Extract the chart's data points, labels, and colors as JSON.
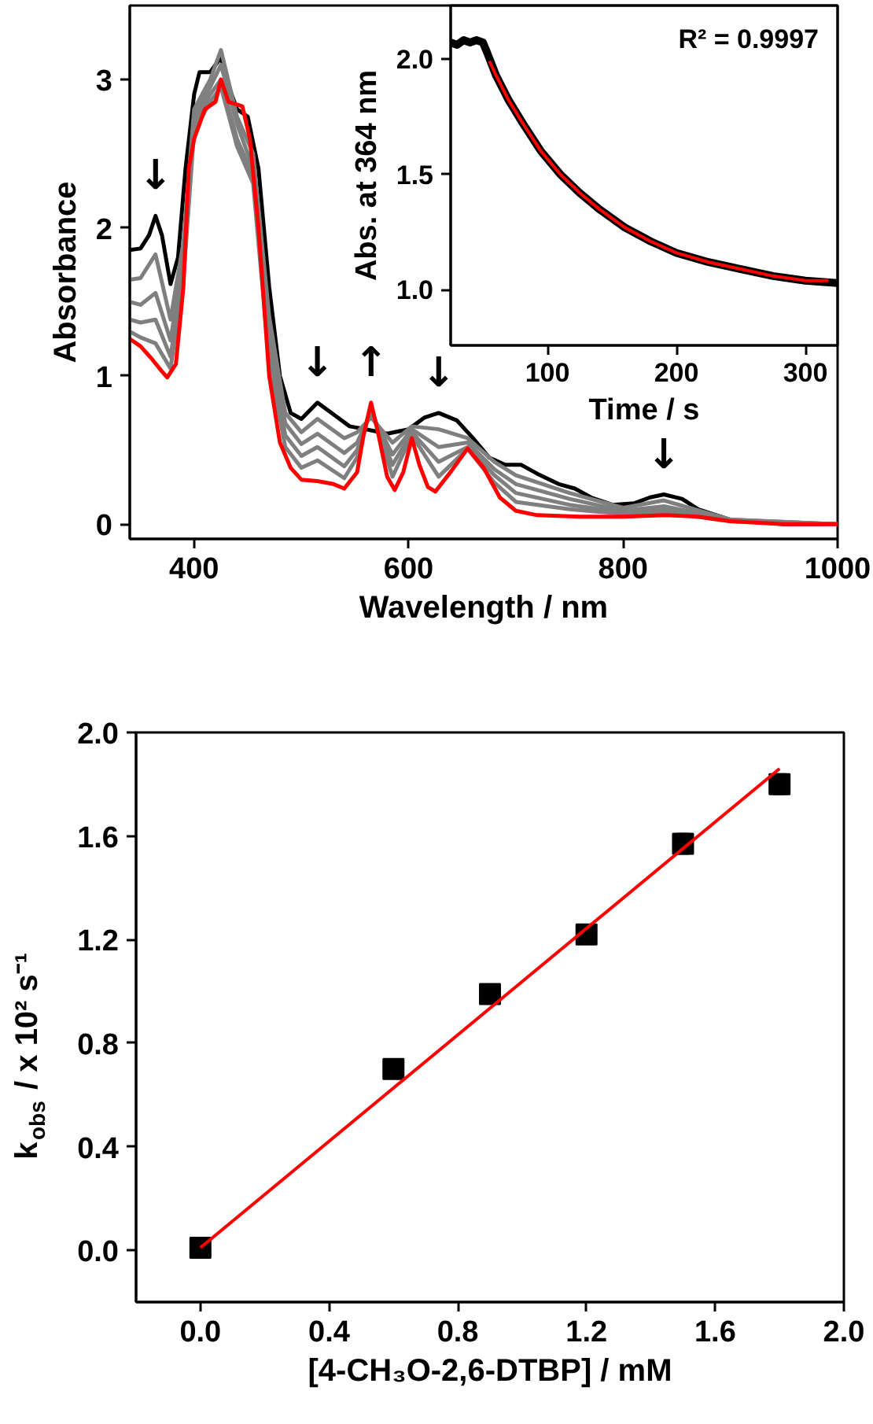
{
  "chart_data": [
    {
      "type": "line",
      "xlabel": "Wavelength / nm",
      "ylabel": "Absorbance",
      "xlim": [
        340,
        1000
      ],
      "ylim": [
        -0.1,
        3.5
      ],
      "xticks": [
        400,
        600,
        800,
        1000
      ],
      "yticks": [
        0,
        1,
        2,
        3
      ],
      "series": [
        {
          "color": "#000000",
          "x": [
            340,
            350,
            358,
            364,
            370,
            378,
            385,
            392,
            400,
            405,
            415,
            425,
            430,
            440,
            450,
            460,
            470,
            480,
            490,
            500,
            515,
            530,
            545,
            560,
            580,
            600,
            615,
            628,
            645,
            660,
            675,
            690,
            705,
            720,
            740,
            755,
            770,
            790,
            810,
            825,
            838,
            855,
            870,
            900,
            950,
            1000
          ],
          "values": [
            1.85,
            1.86,
            1.95,
            2.08,
            1.95,
            1.62,
            1.8,
            2.4,
            2.9,
            3.05,
            3.05,
            3.15,
            3.0,
            2.8,
            2.75,
            2.4,
            1.6,
            1.0,
            0.75,
            0.71,
            0.82,
            0.74,
            0.66,
            0.64,
            0.61,
            0.64,
            0.72,
            0.75,
            0.7,
            0.58,
            0.45,
            0.4,
            0.4,
            0.34,
            0.27,
            0.24,
            0.18,
            0.13,
            0.14,
            0.18,
            0.2,
            0.17,
            0.1,
            0.03,
            0.0,
            0.0
          ]
        },
        {
          "color": "#7f7f7f",
          "x": [
            340,
            350,
            364,
            378,
            390,
            400,
            415,
            425,
            440,
            455,
            470,
            485,
            500,
            515,
            540,
            552,
            565,
            585,
            603,
            628,
            655,
            680,
            700,
            750,
            800,
            838,
            900,
            1000
          ],
          "values": [
            1.65,
            1.66,
            1.82,
            1.38,
            1.9,
            2.8,
            3.0,
            3.2,
            2.75,
            2.5,
            1.4,
            0.75,
            0.62,
            0.71,
            0.58,
            0.62,
            0.72,
            0.55,
            0.66,
            0.64,
            0.58,
            0.42,
            0.33,
            0.21,
            0.11,
            0.16,
            0.03,
            0.0
          ]
        },
        {
          "color": "#7f7f7f",
          "x": [
            340,
            350,
            364,
            378,
            390,
            400,
            415,
            425,
            440,
            455,
            470,
            485,
            500,
            515,
            540,
            552,
            565,
            585,
            603,
            628,
            655,
            680,
            700,
            750,
            800,
            838,
            900,
            1000
          ],
          "values": [
            1.5,
            1.48,
            1.56,
            1.24,
            1.8,
            2.75,
            2.95,
            3.1,
            2.7,
            2.4,
            1.3,
            0.68,
            0.54,
            0.61,
            0.48,
            0.55,
            0.75,
            0.47,
            0.64,
            0.52,
            0.55,
            0.37,
            0.27,
            0.17,
            0.09,
            0.12,
            0.03,
            0.0
          ]
        },
        {
          "color": "#7f7f7f",
          "x": [
            340,
            350,
            364,
            378,
            390,
            400,
            415,
            425,
            440,
            455,
            470,
            485,
            500,
            515,
            540,
            552,
            565,
            585,
            603,
            628,
            655,
            680,
            700,
            750,
            800,
            838,
            900,
            1000
          ],
          "values": [
            1.38,
            1.36,
            1.38,
            1.13,
            1.7,
            2.7,
            2.9,
            3.0,
            2.6,
            2.35,
            1.2,
            0.6,
            0.46,
            0.52,
            0.39,
            0.5,
            0.77,
            0.4,
            0.62,
            0.42,
            0.52,
            0.33,
            0.21,
            0.13,
            0.08,
            0.1,
            0.02,
            0.0
          ]
        },
        {
          "color": "#7f7f7f",
          "x": [
            340,
            350,
            364,
            378,
            390,
            400,
            415,
            425,
            440,
            455,
            470,
            485,
            500,
            515,
            540,
            552,
            565,
            585,
            603,
            628,
            655,
            680,
            700,
            750,
            800,
            838,
            900,
            1000
          ],
          "values": [
            1.3,
            1.26,
            1.22,
            1.05,
            1.65,
            2.65,
            2.85,
            2.95,
            2.55,
            2.3,
            1.1,
            0.52,
            0.38,
            0.43,
            0.31,
            0.45,
            0.79,
            0.32,
            0.6,
            0.32,
            0.51,
            0.28,
            0.15,
            0.1,
            0.07,
            0.08,
            0.02,
            0.0
          ]
        },
        {
          "color": "#ff0000",
          "x": [
            340,
            350,
            360,
            370,
            375,
            383,
            390,
            395,
            400,
            410,
            420,
            425,
            432,
            445,
            452,
            460,
            470,
            480,
            490,
            500,
            515,
            530,
            540,
            552,
            558,
            565,
            572,
            580,
            587,
            595,
            603,
            610,
            618,
            625,
            640,
            655,
            670,
            685,
            700,
            720,
            760,
            800,
            840,
            870,
            900,
            950,
            1000
          ],
          "values": [
            1.25,
            1.2,
            1.12,
            1.03,
            0.99,
            1.08,
            1.6,
            2.4,
            2.6,
            2.8,
            2.85,
            3.0,
            2.85,
            2.82,
            2.6,
            2.0,
            1.0,
            0.55,
            0.38,
            0.3,
            0.29,
            0.27,
            0.24,
            0.35,
            0.6,
            0.82,
            0.6,
            0.32,
            0.23,
            0.35,
            0.58,
            0.4,
            0.25,
            0.22,
            0.36,
            0.51,
            0.38,
            0.18,
            0.09,
            0.06,
            0.05,
            0.05,
            0.06,
            0.05,
            0.02,
            0.0,
            0.0
          ]
        }
      ],
      "annotations": [
        {
          "text": "↓",
          "x": 364,
          "y": 2.08
        },
        {
          "text": "↓",
          "x": 515,
          "y": 0.82
        },
        {
          "text": "↑",
          "x": 565,
          "y": 0.82
        },
        {
          "text": "↓",
          "x": 628,
          "y": 0.75
        },
        {
          "text": "↓",
          "x": 838,
          "y": 0.2
        }
      ]
    },
    {
      "type": "line",
      "xlabel": "Time / s",
      "ylabel": "Abs. at 364 nm",
      "xlim": [
        25,
        325
      ],
      "ylim": [
        0.76,
        2.23
      ],
      "xticks": [
        100,
        200,
        300
      ],
      "yticks": [
        {
          "value": 1,
          "label": "1.0"
        },
        {
          "value": 1.5,
          "label": "1.5"
        },
        {
          "value": 2,
          "label": "2.0"
        }
      ],
      "series": [
        {
          "color": "#000000",
          "x": [
            25,
            30,
            35,
            40,
            45,
            50,
            53,
            60,
            70,
            81,
            95,
            110,
            125,
            140,
            160,
            180,
            200,
            225,
            250,
            275,
            300,
            325
          ],
          "values": [
            2.07,
            2.06,
            2.08,
            2.07,
            2.08,
            2.07,
            2.03,
            1.93,
            1.82,
            1.72,
            1.6,
            1.5,
            1.42,
            1.35,
            1.27,
            1.21,
            1.16,
            1.12,
            1.09,
            1.06,
            1.04,
            1.03
          ]
        },
        {
          "color": "#ff0000",
          "x": [
            55,
            60,
            70,
            81,
            95,
            110,
            125,
            140,
            160,
            180,
            200,
            225,
            250,
            275,
            300,
            318
          ],
          "values": [
            1.99,
            1.93,
            1.82,
            1.72,
            1.6,
            1.5,
            1.42,
            1.35,
            1.27,
            1.21,
            1.16,
            1.12,
            1.09,
            1.06,
            1.04,
            1.04
          ]
        }
      ],
      "annotations": [
        "R² = 0.9997"
      ]
    },
    {
      "type": "scatter",
      "xlabel": "[4-CH₃O-2,6-DTBP] / mM",
      "ylabel": "k$_{obs}$ / x 10² s⁻¹",
      "xlim": [
        -0.2,
        2.0
      ],
      "ylim": [
        -0.2,
        2.0
      ],
      "xticks": [
        {
          "value": 0,
          "label": "0.0"
        },
        {
          "value": 0.4,
          "label": "0.4"
        },
        {
          "value": 0.8,
          "label": "0.8"
        },
        {
          "value": 1.2,
          "label": "1.2"
        },
        {
          "value": 1.6,
          "label": "1.6"
        },
        {
          "value": 2,
          "label": "2.0"
        }
      ],
      "yticks": [
        {
          "value": 0,
          "label": "0.0"
        },
        {
          "value": 0.4,
          "label": "0.4"
        },
        {
          "value": 0.8,
          "label": "0.8"
        },
        {
          "value": 1.2,
          "label": "1.2"
        },
        {
          "value": 1.6,
          "label": "1.6"
        },
        {
          "value": 2,
          "label": "2.0"
        }
      ],
      "x": [
        0,
        0.6,
        0.9,
        1.2,
        1.5,
        1.8
      ],
      "series": [
        {
          "marker": "square",
          "color": "#000000",
          "values": [
            0.01,
            0.7,
            0.99,
            1.22,
            1.57,
            1.8
          ],
          "errors": [
            0.02,
            0.01,
            0.02,
            0.02,
            0.04,
            0.04
          ]
        },
        {
          "type": "line",
          "color": "#ff0000",
          "x": [
            0,
            1.8
          ],
          "values": [
            0.01,
            1.86
          ]
        }
      ]
    }
  ]
}
